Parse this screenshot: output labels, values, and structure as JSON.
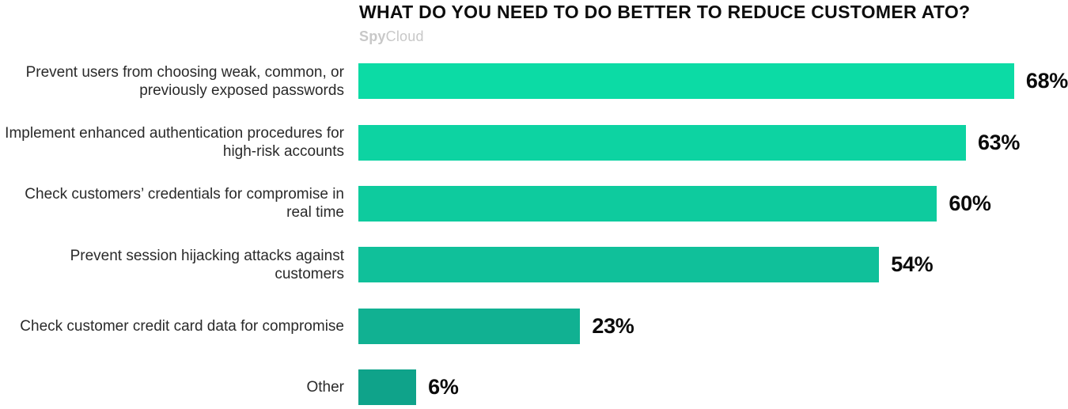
{
  "header": {
    "title": "WHAT DO YOU NEED TO DO BETTER TO REDUCE CUSTOMER ATO?",
    "brand_part1": "Spy",
    "brand_part2": "Cloud"
  },
  "chart_data": {
    "type": "bar",
    "orientation": "horizontal",
    "title": "WHAT DO YOU NEED TO DO BETTER TO REDUCE CUSTOMER ATO?",
    "categories": [
      "Prevent users from choosing weak, common, or previously exposed passwords",
      "Implement enhanced authentication procedures for high-risk accounts",
      "Check customers’ credentials for compromise in real time",
      "Prevent session hijacking attacks against customers",
      "Check customer credit card data for compromise",
      "Other"
    ],
    "values": [
      68,
      63,
      60,
      54,
      23,
      6
    ],
    "value_labels": [
      "68%",
      "63%",
      "60%",
      "54%",
      "23%",
      "6%"
    ],
    "bar_colors": [
      "#0cdba5",
      "#0dd3a2",
      "#0ecb9e",
      "#10c09a",
      "#11b192",
      "#0fa38a"
    ],
    "xlabel": "",
    "ylabel": "",
    "xlim": [
      0,
      100
    ],
    "grid": false,
    "legend": false,
    "data_labels_position": "outside-end",
    "category_labels_position": "left"
  }
}
